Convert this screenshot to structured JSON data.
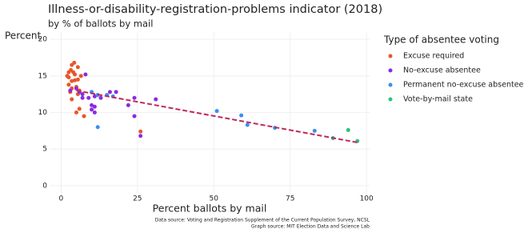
{
  "chart_data": {
    "type": "scatter",
    "title": "Illness-or-disability-registration-problems indicator (2018)",
    "subtitle": "by % of ballots by mail",
    "y_label": "Percent",
    "x_label": "Percent ballots by mail",
    "legend_title": "Type of absentee voting",
    "legend_position": "right",
    "source": "Data source:  Voting and Registration Supplement of the Current Population Survey, NCSL",
    "source2": "Graph source:  MIT Election Data and Science Lab",
    "xlim": [
      -3.5,
      101
    ],
    "ylim": [
      -1,
      21
    ],
    "xticks": [
      0,
      25,
      50,
      75,
      100
    ],
    "yticks": [
      0,
      5,
      10,
      15,
      20
    ],
    "grid": true,
    "series": [
      {
        "name": "Excuse required",
        "color": "#e8562a",
        "x": [
          3.5,
          4.3,
          2.5,
          3.2,
          5.5,
          2,
          2.5,
          4,
          4.5,
          3.5,
          4.5,
          5.5,
          2.5,
          3.5,
          5,
          6,
          5.5,
          3,
          3.5,
          6,
          5,
          7.5,
          26,
          6.5
        ],
        "values": [
          16.5,
          16.8,
          15.5,
          15.8,
          16.2,
          15,
          14.8,
          15.5,
          15.2,
          14.3,
          14.4,
          14.5,
          13.8,
          13.3,
          13.5,
          13,
          12.5,
          12.8,
          11.8,
          10.5,
          10,
          9.5,
          7.4,
          15
        ]
      },
      {
        "name": "No-excuse absentee",
        "color": "#8a2be2",
        "x": [
          3,
          5,
          8,
          7,
          7,
          11,
          9,
          10,
          11,
          10,
          11,
          16,
          18,
          24,
          22,
          31,
          24,
          26,
          6,
          13
        ],
        "values": [
          13,
          13.3,
          15.2,
          12.5,
          12,
          12.2,
          12,
          11,
          10.8,
          10.4,
          10,
          12.8,
          12.8,
          12,
          11,
          11.8,
          9.5,
          6.8,
          12.8,
          12
        ]
      },
      {
        "name": "Permanent no-excuse absentee",
        "color": "#3a8ef0",
        "x": [
          10,
          12,
          15,
          17,
          12,
          51,
          59,
          61,
          70,
          83
        ],
        "values": [
          12.8,
          12.4,
          12.4,
          12.2,
          8,
          10.2,
          9.6,
          8.3,
          7.9,
          7.5
        ]
      },
      {
        "name": "Vote-by-mail state",
        "color": "#2ec27e",
        "x": [
          89,
          94,
          97
        ],
        "values": [
          6.5,
          7.6,
          6.1
        ]
      }
    ],
    "trend": {
      "color": "#c0285a",
      "x": [
        5,
        97
      ],
      "values": [
        13,
        5.9
      ]
    }
  }
}
